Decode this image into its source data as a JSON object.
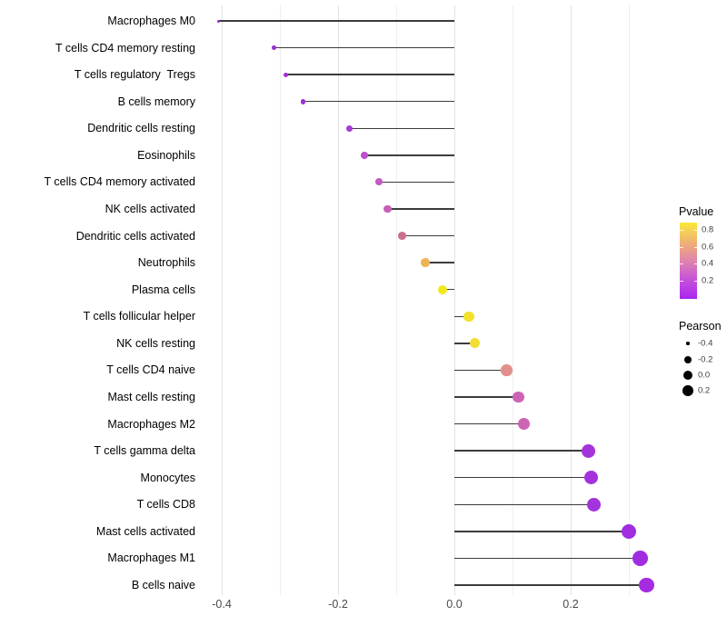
{
  "chart": {
    "legend_pvalue": {
      "title": "Pvalue",
      "tick_labels": [
        "0.8",
        "0.6",
        "0.4",
        "0.2"
      ],
      "gradient_stops": [
        {
          "color": "#A826EE",
          "pct": 0
        },
        {
          "color": "#C44FDC",
          "pct": 24
        },
        {
          "color": "#DC7FB2",
          "pct": 47
        },
        {
          "color": "#EDA87F",
          "pct": 69
        },
        {
          "color": "#F7D64F",
          "pct": 92
        },
        {
          "color": "#FAEB2F",
          "pct": 100
        }
      ]
    },
    "legend_pearson": {
      "title": "Pearson",
      "items": [
        {
          "label": "-0.4"
        },
        {
          "label": "-0.2"
        },
        {
          "label": "0.0"
        },
        {
          "label": "0.2"
        }
      ]
    },
    "style": {
      "stem_color": "#3c3c3c",
      "grid_major_color": "#e3e3e3",
      "grid_minor_color": "#efefef",
      "background": "#ffffff"
    }
  },
  "chart_data": {
    "type": "lollipop",
    "orientation": "horizontal",
    "title": "",
    "xlabel": "",
    "ylabel": "",
    "baseline": 0,
    "color_encodes": "Pvalue",
    "size_encodes": "Pearson",
    "x_axis": {
      "ticks": [
        -0.4,
        -0.2,
        0,
        0.2
      ],
      "tick_labels": [
        "-0.4",
        "-0.2",
        "0.0",
        "0.2"
      ],
      "minor_ticks": [
        -0.3,
        -0.1,
        0.1,
        0.3
      ],
      "range": [
        -0.43,
        0.37
      ]
    },
    "categories": [
      "Macrophages M0",
      "T cells CD4 memory resting",
      "T cells regulatory  Tregs",
      "B cells memory",
      "Dendritic cells resting",
      "Eosinophils",
      "T cells CD4 memory activated",
      "NK cells activated",
      "Dendritic cells activated",
      "Neutrophils",
      "Plasma cells",
      "T cells follicular helper",
      "NK cells resting",
      "T cells CD4 naive",
      "Mast cells resting",
      "Macrophages M2",
      "T cells gamma delta",
      "Monocytes",
      "T cells CD8",
      "Mast cells activated",
      "Macrophages M1",
      "B cells naive"
    ],
    "series": [
      {
        "name": "Pearson",
        "values": [
          -0.405,
          -0.31,
          -0.29,
          -0.26,
          -0.18,
          -0.155,
          -0.13,
          -0.115,
          -0.09,
          -0.05,
          -0.02,
          0.025,
          0.035,
          0.09,
          0.11,
          0.12,
          0.23,
          0.235,
          0.24,
          0.3,
          0.32,
          0.33
        ]
      }
    ],
    "colors": [
      "#9B27D2",
      "#9C2FD6",
      "#9E31D8",
      "#9D30D6",
      "#A53AD2",
      "#BE4ECC",
      "#C45AC4",
      "#C75FBA",
      "#C97090",
      "#EDB456",
      "#F2E81E",
      "#F2E229",
      "#F1DE33",
      "#E2908E",
      "#CD63B5",
      "#CD65B3",
      "#A433DC",
      "#A433DC",
      "#A433DC",
      "#A02EE0",
      "#A02EE0",
      "#A42BE2"
    ]
  }
}
